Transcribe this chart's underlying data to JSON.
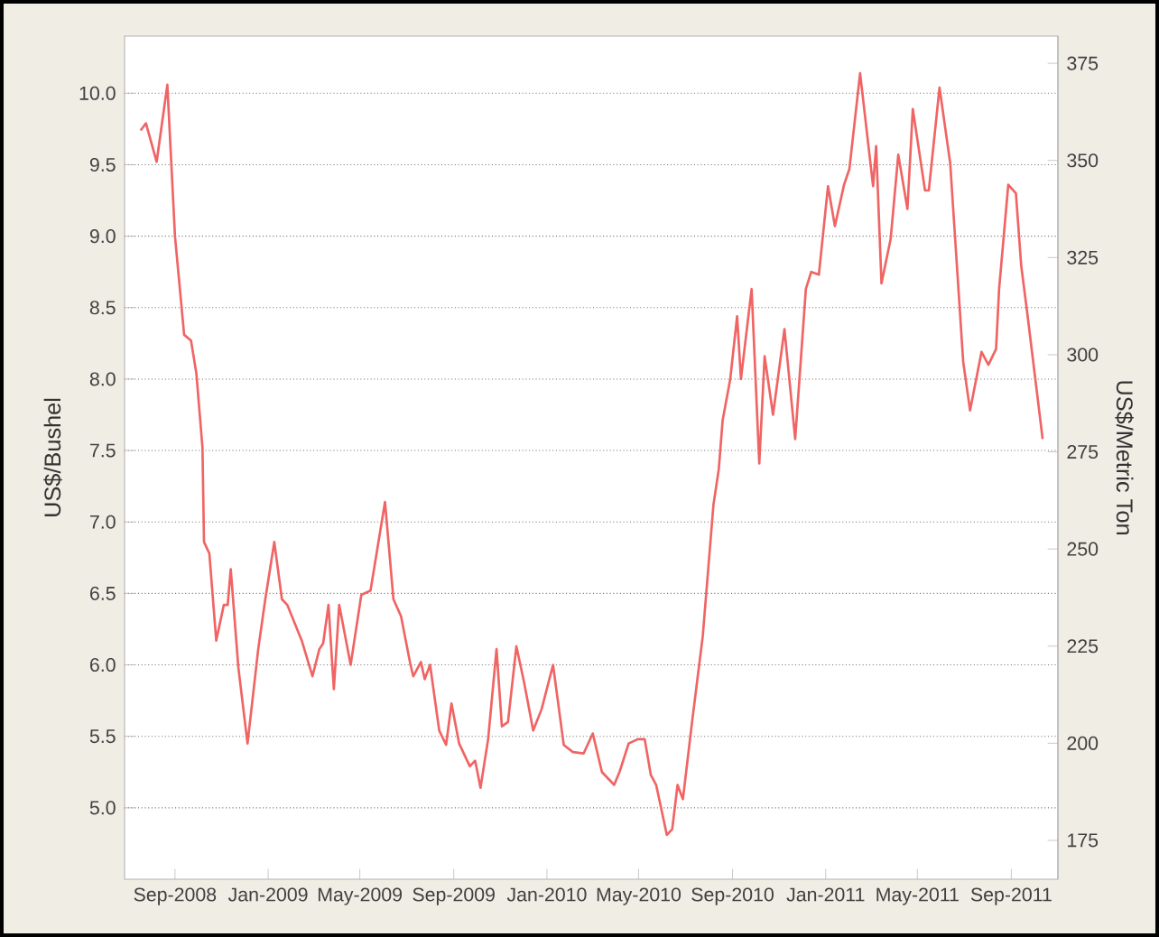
{
  "chart_data": {
    "type": "line",
    "ylabel": "US$/Bushel",
    "y2label": "US$/Metric Ton",
    "color": "#f06464",
    "grid": "y",
    "xlim": [
      "2008-06-27",
      "2011-11-01"
    ],
    "xticks": [
      {
        "value": "2008-09-01",
        "label": "Sep-2008"
      },
      {
        "value": "2009-01-01",
        "label": "Jan-2009"
      },
      {
        "value": "2009-05-01",
        "label": "May-2009"
      },
      {
        "value": "2009-09-01",
        "label": "Sep-2009"
      },
      {
        "value": "2010-01-01",
        "label": "Jan-2010"
      },
      {
        "value": "2010-05-01",
        "label": "May-2010"
      },
      {
        "value": "2010-09-01",
        "label": "Sep-2010"
      },
      {
        "value": "2011-01-01",
        "label": "Jan-2011"
      },
      {
        "value": "2011-05-01",
        "label": "May-2011"
      },
      {
        "value": "2011-09-01",
        "label": "Sep-2011"
      }
    ],
    "ylim": [
      4.5,
      10.4
    ],
    "yticks": [
      {
        "value": 5,
        "label": "5.0"
      },
      5.5,
      {
        "value": 6,
        "label": "6.0"
      },
      6.5,
      {
        "value": 7,
        "label": "7.0"
      },
      7.5,
      {
        "value": 8,
        "label": "8.0"
      },
      8.5,
      {
        "value": 9,
        "label": "9.0"
      },
      9.5,
      {
        "value": 10,
        "label": "10.0"
      }
    ],
    "y2lim": [
      165,
      382
    ],
    "y2ticks": [
      175,
      200,
      225,
      250,
      275,
      300,
      325,
      350,
      375
    ],
    "x": [
      "2008-07-18",
      "2008-07-25",
      "2008-08-08",
      "2008-08-22",
      "2008-09-01",
      "2008-09-13",
      "2008-09-22",
      "2008-09-29",
      "2008-10-07",
      "2008-10-09",
      "2008-10-16",
      "2008-10-25",
      "2008-11-04",
      "2008-11-09",
      "2008-11-13",
      "2008-11-23",
      "2008-12-05",
      "2008-12-19",
      "2008-12-28",
      "2009-01-09",
      "2009-01-19",
      "2009-01-26",
      "2009-02-14",
      "2009-02-28",
      "2009-03-09",
      "2009-03-14",
      "2009-03-21",
      "2009-03-28",
      "2009-04-04",
      "2009-04-19",
      "2009-05-03",
      "2009-05-15",
      "2009-06-03",
      "2009-06-14",
      "2009-06-24",
      "2009-07-06",
      "2009-07-10",
      "2009-07-20",
      "2009-07-25",
      "2009-08-01",
      "2009-08-13",
      "2009-08-22",
      "2009-08-29",
      "2009-09-08",
      "2009-09-22",
      "2009-09-29",
      "2009-10-06",
      "2009-10-16",
      "2009-10-27",
      "2009-11-03",
      "2009-11-11",
      "2009-11-22",
      "2009-12-02",
      "2009-12-14",
      "2009-12-25",
      "2010-01-09",
      "2010-01-23",
      "2010-02-04",
      "2010-02-18",
      "2010-03-02",
      "2010-03-14",
      "2010-03-30",
      "2010-04-06",
      "2010-04-18",
      "2010-04-30",
      "2010-05-09",
      "2010-05-17",
      "2010-05-24",
      "2010-06-07",
      "2010-06-14",
      "2010-06-21",
      "2010-06-28",
      "2010-07-10",
      "2010-07-24",
      "2010-08-07",
      "2010-08-14",
      "2010-08-19",
      "2010-08-29",
      "2010-09-07",
      "2010-09-12",
      "2010-09-26",
      "2010-10-06",
      "2010-10-13",
      "2010-10-24",
      "2010-11-08",
      "2010-11-22",
      "2010-12-06",
      "2010-12-13",
      "2010-12-23",
      "2011-01-04",
      "2011-01-13",
      "2011-01-25",
      "2011-02-01",
      "2011-02-15",
      "2011-03-04",
      "2011-03-08",
      "2011-03-15",
      "2011-03-27",
      "2011-04-06",
      "2011-04-18",
      "2011-04-25",
      "2011-05-11",
      "2011-05-16",
      "2011-05-30",
      "2011-06-13",
      "2011-06-30",
      "2011-07-09",
      "2011-07-24",
      "2011-08-02",
      "2011-08-12",
      "2011-08-16",
      "2011-08-28",
      "2011-09-07",
      "2011-09-14",
      "2011-09-21",
      "2011-10-12"
    ],
    "values": [
      9.74,
      9.79,
      9.52,
      10.06,
      9.0,
      8.31,
      8.27,
      8.04,
      7.52,
      6.86,
      6.78,
      6.17,
      6.42,
      6.42,
      6.67,
      5.98,
      5.45,
      6.11,
      6.45,
      6.86,
      6.46,
      6.42,
      6.17,
      5.92,
      6.11,
      6.15,
      6.42,
      5.83,
      6.42,
      6.0,
      6.49,
      6.52,
      7.14,
      6.46,
      6.34,
      6.01,
      5.92,
      6.02,
      5.9,
      6.0,
      5.54,
      5.44,
      5.73,
      5.45,
      5.29,
      5.33,
      5.14,
      5.48,
      6.11,
      5.57,
      5.6,
      6.13,
      5.88,
      5.54,
      5.69,
      6.0,
      5.44,
      5.39,
      5.38,
      5.52,
      5.25,
      5.16,
      5.25,
      5.45,
      5.48,
      5.48,
      5.23,
      5.16,
      4.81,
      4.85,
      5.16,
      5.06,
      5.6,
      6.2,
      7.12,
      7.37,
      7.71,
      8.0,
      8.44,
      8.0,
      8.63,
      7.41,
      8.16,
      7.75,
      8.35,
      7.58,
      8.63,
      8.75,
      8.73,
      9.35,
      9.07,
      9.36,
      9.47,
      10.14,
      9.35,
      9.63,
      8.67,
      8.98,
      9.57,
      9.19,
      9.89,
      9.32,
      9.32,
      10.04,
      9.51,
      8.12,
      7.78,
      8.19,
      8.1,
      8.21,
      8.63,
      9.36,
      9.3,
      8.79,
      8.5,
      7.58
    ]
  }
}
